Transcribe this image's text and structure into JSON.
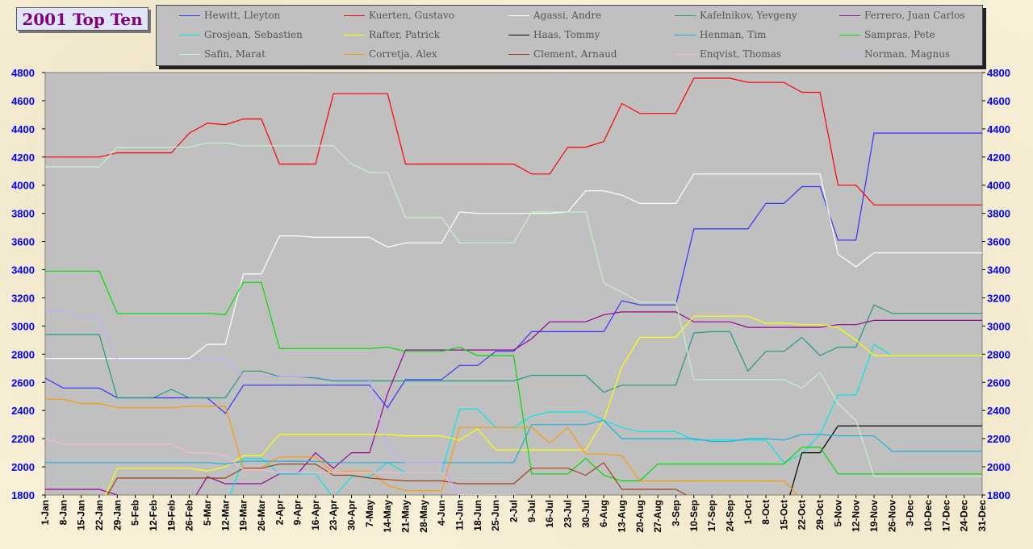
{
  "title": "2001 Top Ten",
  "chart_data": {
    "type": "line",
    "ylim": [
      1800,
      4800
    ],
    "yticks": [
      1800,
      2000,
      2200,
      2400,
      2600,
      2800,
      3000,
      3200,
      3400,
      3600,
      3800,
      4000,
      4200,
      4400,
      4600,
      4800
    ],
    "grid": false,
    "legend_position": "top",
    "background": "#c0c0c0",
    "axis_label_color": "#0000ff",
    "categories": [
      "1-Jan",
      "8-Jan",
      "15-Jan",
      "22-Jan",
      "29-Jan",
      "5-Feb",
      "12-Feb",
      "19-Feb",
      "26-Feb",
      "5-Mar",
      "12-Mar",
      "19-Mar",
      "26-Mar",
      "2-Apr",
      "9-Apr",
      "16-Apr",
      "23-Apr",
      "30-Apr",
      "7-May",
      "14-May",
      "21-May",
      "28-May",
      "4-Jun",
      "11-Jun",
      "18-Jun",
      "25-Jun",
      "2-Jul",
      "9-Jul",
      "16-Jul",
      "23-Jul",
      "30-Jul",
      "6-Aug",
      "13-Aug",
      "20-Aug",
      "27-Aug",
      "3-Sep",
      "10-Sep",
      "17-Sep",
      "24-Sep",
      "1-Oct",
      "8-Oct",
      "15-Oct",
      "22-Oct",
      "29-Oct",
      "5-Nov",
      "12-Nov",
      "19-Nov",
      "26-Nov",
      "3-Dec",
      "10-Dec",
      "17-Dec",
      "24-Dec",
      "31-Dec"
    ],
    "series": [
      {
        "name": "Hewitt, Lleyton",
        "color": "#3333ff",
        "values": [
          2630,
          2560,
          2560,
          2560,
          2490,
          2490,
          2490,
          2490,
          2490,
          2490,
          2380,
          2580,
          2580,
          2580,
          2580,
          2580,
          2580,
          2580,
          2580,
          2420,
          2620,
          2620,
          2620,
          2720,
          2720,
          2820,
          2820,
          2960,
          2960,
          2960,
          2960,
          2960,
          3180,
          3150,
          3150,
          3150,
          3690,
          3690,
          3690,
          3690,
          3870,
          3870,
          3990,
          3990,
          3610,
          3610,
          4370,
          4370,
          4370,
          4370,
          4370,
          4370,
          4370
        ]
      },
      {
        "name": "Kuerten, Gustavo",
        "color": "#ff0000",
        "values": [
          4200,
          4200,
          4200,
          4200,
          4230,
          4230,
          4230,
          4230,
          4370,
          4440,
          4430,
          4470,
          4470,
          4150,
          4150,
          4150,
          4650,
          4650,
          4650,
          4650,
          4150,
          4150,
          4150,
          4150,
          4150,
          4150,
          4150,
          4080,
          4080,
          4270,
          4270,
          4310,
          4580,
          4510,
          4510,
          4510,
          4760,
          4760,
          4760,
          4730,
          4730,
          4730,
          4660,
          4660,
          4000,
          4000,
          3860,
          3860,
          3860,
          3860,
          3860,
          3860,
          3860
        ]
      },
      {
        "name": "Agassi, Andre",
        "color": "#ffffff",
        "values": [
          2770,
          2770,
          2770,
          2770,
          2770,
          2770,
          2770,
          2770,
          2770,
          2870,
          2870,
          3370,
          3370,
          3640,
          3640,
          3630,
          3630,
          3630,
          3630,
          3560,
          3590,
          3590,
          3590,
          3810,
          3800,
          3800,
          3800,
          3800,
          3800,
          3810,
          3960,
          3960,
          3930,
          3870,
          3870,
          3870,
          4080,
          4080,
          4080,
          4080,
          4080,
          4080,
          4080,
          4080,
          3510,
          3420,
          3520,
          3520,
          3520,
          3520,
          3520,
          3520,
          3520
        ]
      },
      {
        "name": "Kafelnikov, Yevgeny",
        "color": "#209a88",
        "values": [
          2940,
          2940,
          2940,
          2940,
          2490,
          2490,
          2490,
          2550,
          2490,
          2490,
          2490,
          2680,
          2680,
          2640,
          2640,
          2630,
          2610,
          2610,
          2610,
          2610,
          2610,
          2610,
          2610,
          2610,
          2610,
          2610,
          2610,
          2650,
          2650,
          2650,
          2650,
          2530,
          2580,
          2580,
          2580,
          2580,
          2950,
          2960,
          2960,
          2680,
          2820,
          2820,
          2920,
          2790,
          2850,
          2850,
          3150,
          3090,
          3090,
          3090,
          3090,
          3090,
          3090
        ]
      },
      {
        "name": "Ferrero, Juan Carlos",
        "color": "#990099",
        "values": [
          1840,
          1840,
          1840,
          1840,
          1800,
          1720,
          1720,
          1720,
          1720,
          1930,
          1880,
          1880,
          1880,
          1950,
          1950,
          2100,
          1990,
          2100,
          2100,
          2520,
          2830,
          2830,
          2830,
          2830,
          2830,
          2830,
          2830,
          2910,
          3030,
          3030,
          3030,
          3080,
          3100,
          3100,
          3100,
          3100,
          3030,
          3030,
          3030,
          2990,
          2990,
          2990,
          2990,
          2990,
          3010,
          3010,
          3040,
          3040,
          3040,
          3040,
          3040,
          3040,
          3040
        ]
      },
      {
        "name": "Grosjean, Sebastien",
        "color": "#00e8e8",
        "values": [
          1700,
          1700,
          1700,
          1700,
          1700,
          1700,
          1700,
          1700,
          1700,
          1700,
          1700,
          2060,
          2060,
          1950,
          1950,
          1950,
          1780,
          1930,
          1930,
          2030,
          1960,
          1960,
          1960,
          2410,
          2410,
          2280,
          2280,
          2360,
          2390,
          2390,
          2390,
          2330,
          2280,
          2250,
          2250,
          2250,
          2190,
          2190,
          2190,
          2190,
          2190,
          2030,
          2090,
          2230,
          2510,
          2510,
          2870,
          2790,
          2790,
          2790,
          2790,
          2790,
          2790
        ]
      },
      {
        "name": "Rafter, Patrick",
        "color": "#ffff00",
        "values": [
          1700,
          1700,
          1700,
          1700,
          1990,
          1990,
          1990,
          1990,
          1990,
          1970,
          2000,
          2080,
          2080,
          2230,
          2230,
          2230,
          2230,
          2230,
          2230,
          2230,
          2220,
          2220,
          2220,
          2190,
          2270,
          2120,
          2120,
          2120,
          2120,
          2120,
          2120,
          2330,
          2710,
          2920,
          2920,
          2920,
          3070,
          3070,
          3070,
          3070,
          3020,
          3020,
          3010,
          3010,
          2990,
          2900,
          2790,
          2790,
          2790,
          2790,
          2790,
          2790,
          2790
        ]
      },
      {
        "name": "Haas, Tommy",
        "color": "#000000",
        "values": [
          1650,
          1650,
          1650,
          1650,
          1650,
          1650,
          1650,
          1650,
          1650,
          1650,
          1650,
          1650,
          1650,
          1650,
          1650,
          1650,
          1650,
          1650,
          1650,
          1650,
          1650,
          1650,
          1650,
          1650,
          1650,
          1650,
          1650,
          1650,
          1650,
          1650,
          1650,
          1650,
          1650,
          1650,
          1650,
          1650,
          1650,
          1650,
          1650,
          1650,
          1650,
          1650,
          2100,
          2100,
          2290,
          2290,
          2290,
          2290,
          2290,
          2290,
          2290,
          2290,
          2290
        ]
      },
      {
        "name": "Henman, Tim",
        "color": "#1ab0e0",
        "values": [
          2030,
          2030,
          2030,
          2030,
          2030,
          2030,
          2030,
          2030,
          2030,
          2030,
          2020,
          2040,
          2040,
          2040,
          2040,
          2040,
          2030,
          2030,
          2030,
          2030,
          2030,
          2030,
          2030,
          2030,
          2030,
          2030,
          2030,
          2300,
          2300,
          2300,
          2300,
          2330,
          2200,
          2200,
          2200,
          2200,
          2200,
          2180,
          2180,
          2200,
          2200,
          2190,
          2230,
          2230,
          2220,
          2220,
          2220,
          2110,
          2110,
          2110,
          2110,
          2110,
          2110
        ]
      },
      {
        "name": "Sampras, Pete",
        "color": "#00dd00",
        "values": [
          3390,
          3390,
          3390,
          3390,
          3090,
          3090,
          3090,
          3090,
          3090,
          3090,
          3080,
          3310,
          3310,
          2840,
          2840,
          2840,
          2840,
          2840,
          2840,
          2850,
          2820,
          2820,
          2820,
          2850,
          2790,
          2790,
          2790,
          1950,
          1950,
          1950,
          2060,
          1940,
          1900,
          1900,
          2020,
          2020,
          2020,
          2020,
          2020,
          2020,
          2020,
          2020,
          2140,
          2140,
          1950,
          1950,
          1950,
          1950,
          1950,
          1950,
          1950,
          1950,
          1950
        ]
      },
      {
        "name": "Safin, Marat",
        "color": "#c8f0c8",
        "values": [
          4130,
          4130,
          4130,
          4130,
          4270,
          4270,
          4270,
          4270,
          4270,
          4300,
          4300,
          4280,
          4280,
          4280,
          4280,
          4280,
          4280,
          4150,
          4090,
          4090,
          3770,
          3770,
          3770,
          3590,
          3590,
          3590,
          3590,
          3810,
          3810,
          3810,
          3810,
          3310,
          3240,
          3170,
          3170,
          3170,
          2620,
          2620,
          2620,
          2620,
          2620,
          2620,
          2560,
          2670,
          2450,
          2330,
          1930,
          1930,
          1930,
          1930,
          1930,
          1930,
          1930
        ]
      },
      {
        "name": "Corretja, Alex",
        "color": "#ff9900",
        "values": [
          2480,
          2480,
          2450,
          2450,
          2420,
          2420,
          2420,
          2420,
          2430,
          2430,
          2430,
          1990,
          1990,
          2070,
          2070,
          2070,
          1960,
          1970,
          1970,
          1870,
          1830,
          1830,
          1830,
          2280,
          2280,
          2280,
          2280,
          2280,
          2170,
          2280,
          2090,
          2090,
          2080,
          1900,
          1900,
          1900,
          1900,
          1900,
          1900,
          1900,
          1900,
          1900,
          1770,
          1770,
          1770,
          1770,
          1770,
          1770,
          1770,
          1770,
          1770,
          1770,
          1770
        ]
      },
      {
        "name": "Clement, Arnaud",
        "color": "#a0401a",
        "values": [
          1700,
          1700,
          1700,
          1700,
          1920,
          1920,
          1920,
          1920,
          1920,
          1920,
          1920,
          1990,
          1990,
          2020,
          2020,
          2020,
          1940,
          1940,
          1920,
          1910,
          1900,
          1900,
          1900,
          1880,
          1880,
          1880,
          1880,
          1990,
          1990,
          1990,
          1940,
          2030,
          1840,
          1840,
          1840,
          1840,
          1770,
          1770,
          1770,
          1770,
          1770,
          1770,
          1770,
          1770,
          1770,
          1770,
          1770,
          1770,
          1770,
          1770,
          1770,
          1770,
          1770
        ]
      },
      {
        "name": "Enqvist, Thomas",
        "color": "#f5b8d8",
        "values": [
          2200,
          2160,
          2160,
          2160,
          2160,
          2160,
          2160,
          2160,
          2100,
          2100,
          2080,
          1980,
          1980,
          1960,
          1960,
          1960,
          1960,
          1960,
          1960,
          1960,
          1960,
          1960,
          1960,
          1800,
          1800,
          1800,
          1800,
          1780,
          1780,
          1780,
          1780,
          1780,
          1780,
          1780,
          1780,
          1780,
          1780,
          1780,
          1780,
          1780,
          1780,
          1780,
          1780,
          1780,
          1780,
          1780,
          1780,
          1780,
          1780,
          1780,
          1780,
          1780,
          1780
        ]
      },
      {
        "name": "Norman, Magnus",
        "color": "#c6a8ff",
        "values": [
          3110,
          3110,
          3060,
          3060,
          2760,
          2760,
          2760,
          2760,
          2760,
          2760,
          2760,
          2640,
          2640,
          2640,
          2640,
          2640,
          2620,
          2620,
          2620,
          2140,
          2030,
          2030,
          2030,
          1780,
          1780,
          1780,
          1780,
          1780,
          1780,
          1780,
          1780,
          1780,
          1780,
          1780,
          1780,
          1780,
          1780,
          1780,
          1780,
          1780,
          1780,
          1780,
          1780,
          1780,
          1780,
          1780,
          1780,
          1780,
          1780,
          1780,
          1780,
          1780,
          1780
        ]
      }
    ]
  }
}
